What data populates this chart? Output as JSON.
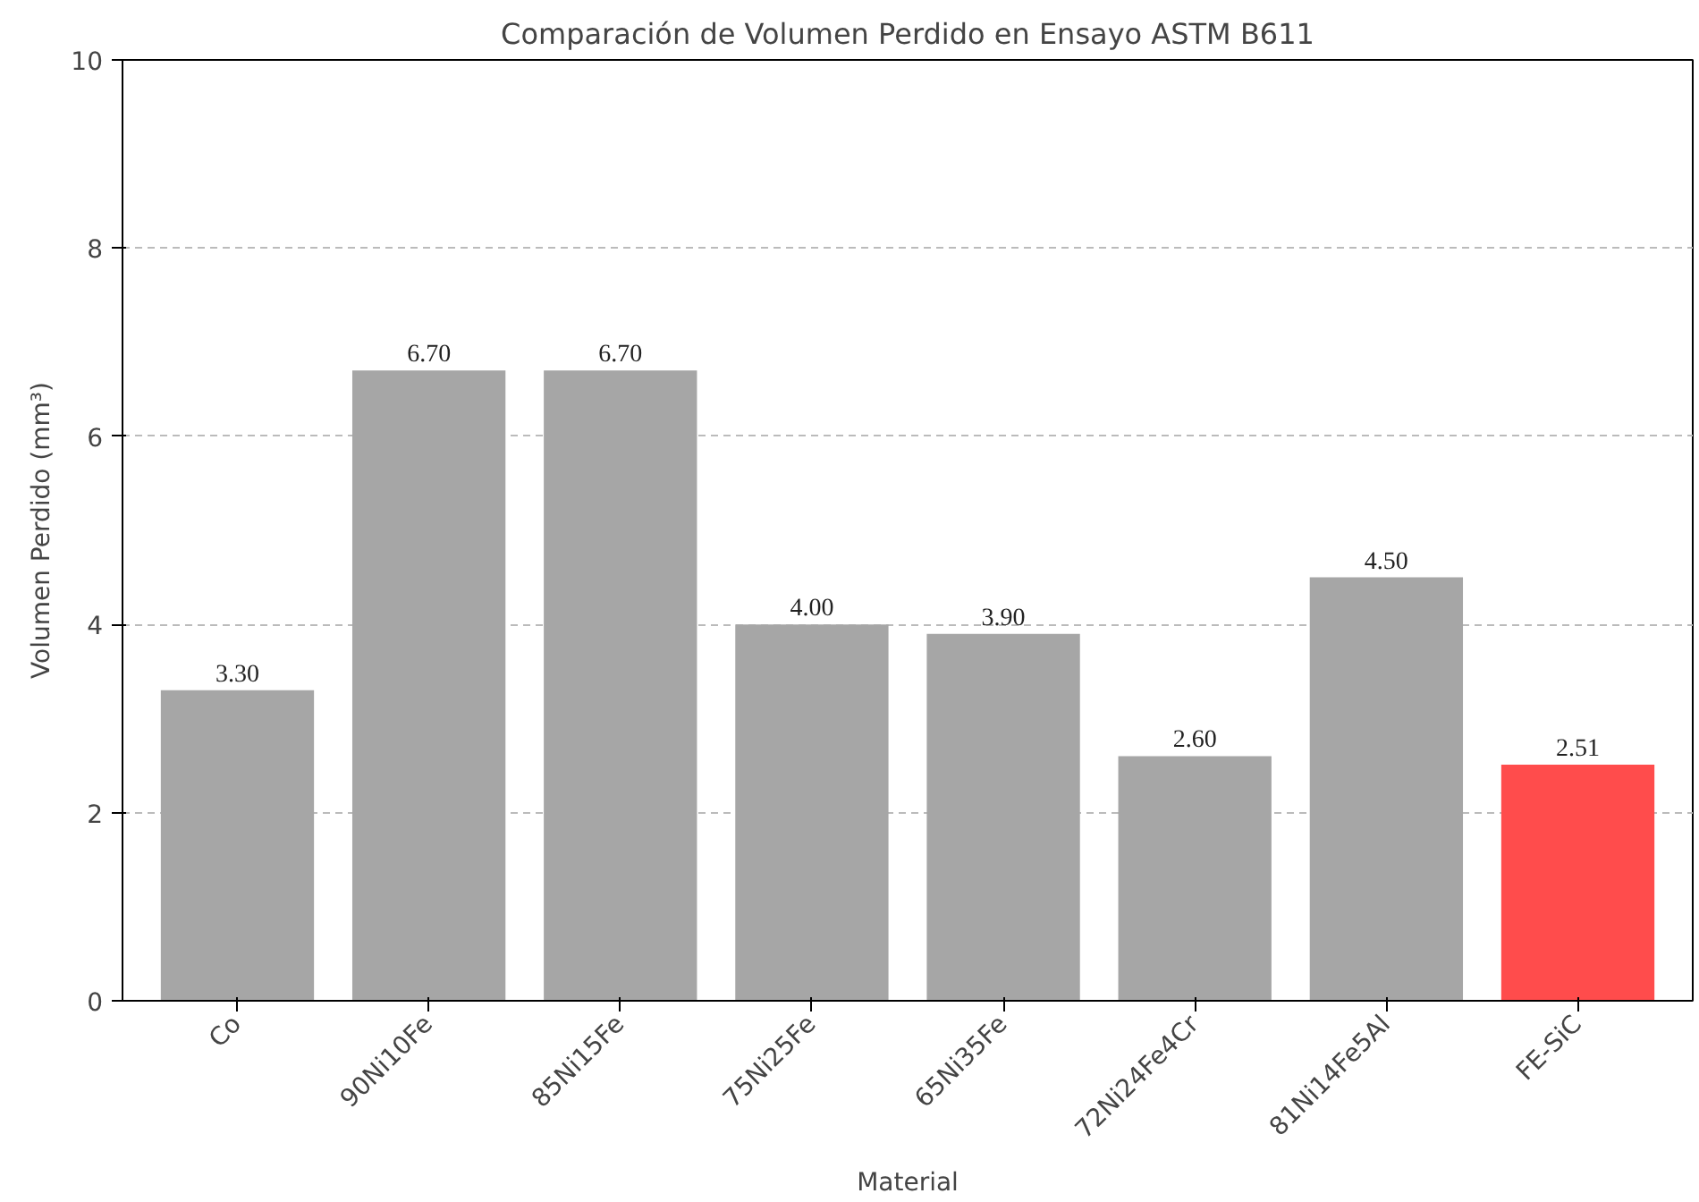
{
  "chart_data": {
    "type": "bar",
    "title": "Comparación de Volumen Perdido en Ensayo ASTM B611",
    "xlabel": "Material",
    "ylabel": "Volumen Perdido (mm³)",
    "categories": [
      "Co",
      "90Ni10Fe",
      "85Ni15Fe",
      "75Ni25Fe",
      "65Ni35Fe",
      "72Ni24Fe4Cr",
      "81Ni14Fe5Al",
      "FE-SiC"
    ],
    "values": [
      3.3,
      6.7,
      6.7,
      4.0,
      3.9,
      2.6,
      4.5,
      2.51
    ],
    "value_labels": [
      "3.30",
      "6.70",
      "6.70",
      "4.00",
      "3.90",
      "2.60",
      "4.50",
      "2.51"
    ],
    "colors": [
      "#a6a6a6",
      "#a6a6a6",
      "#a6a6a6",
      "#a6a6a6",
      "#a6a6a6",
      "#a6a6a6",
      "#a6a6a6",
      "#ff4c4c"
    ],
    "ylim": [
      0,
      10
    ],
    "yticks": [
      0,
      2,
      4,
      6,
      8,
      10
    ],
    "grid": "y",
    "line_style": "dashed"
  }
}
